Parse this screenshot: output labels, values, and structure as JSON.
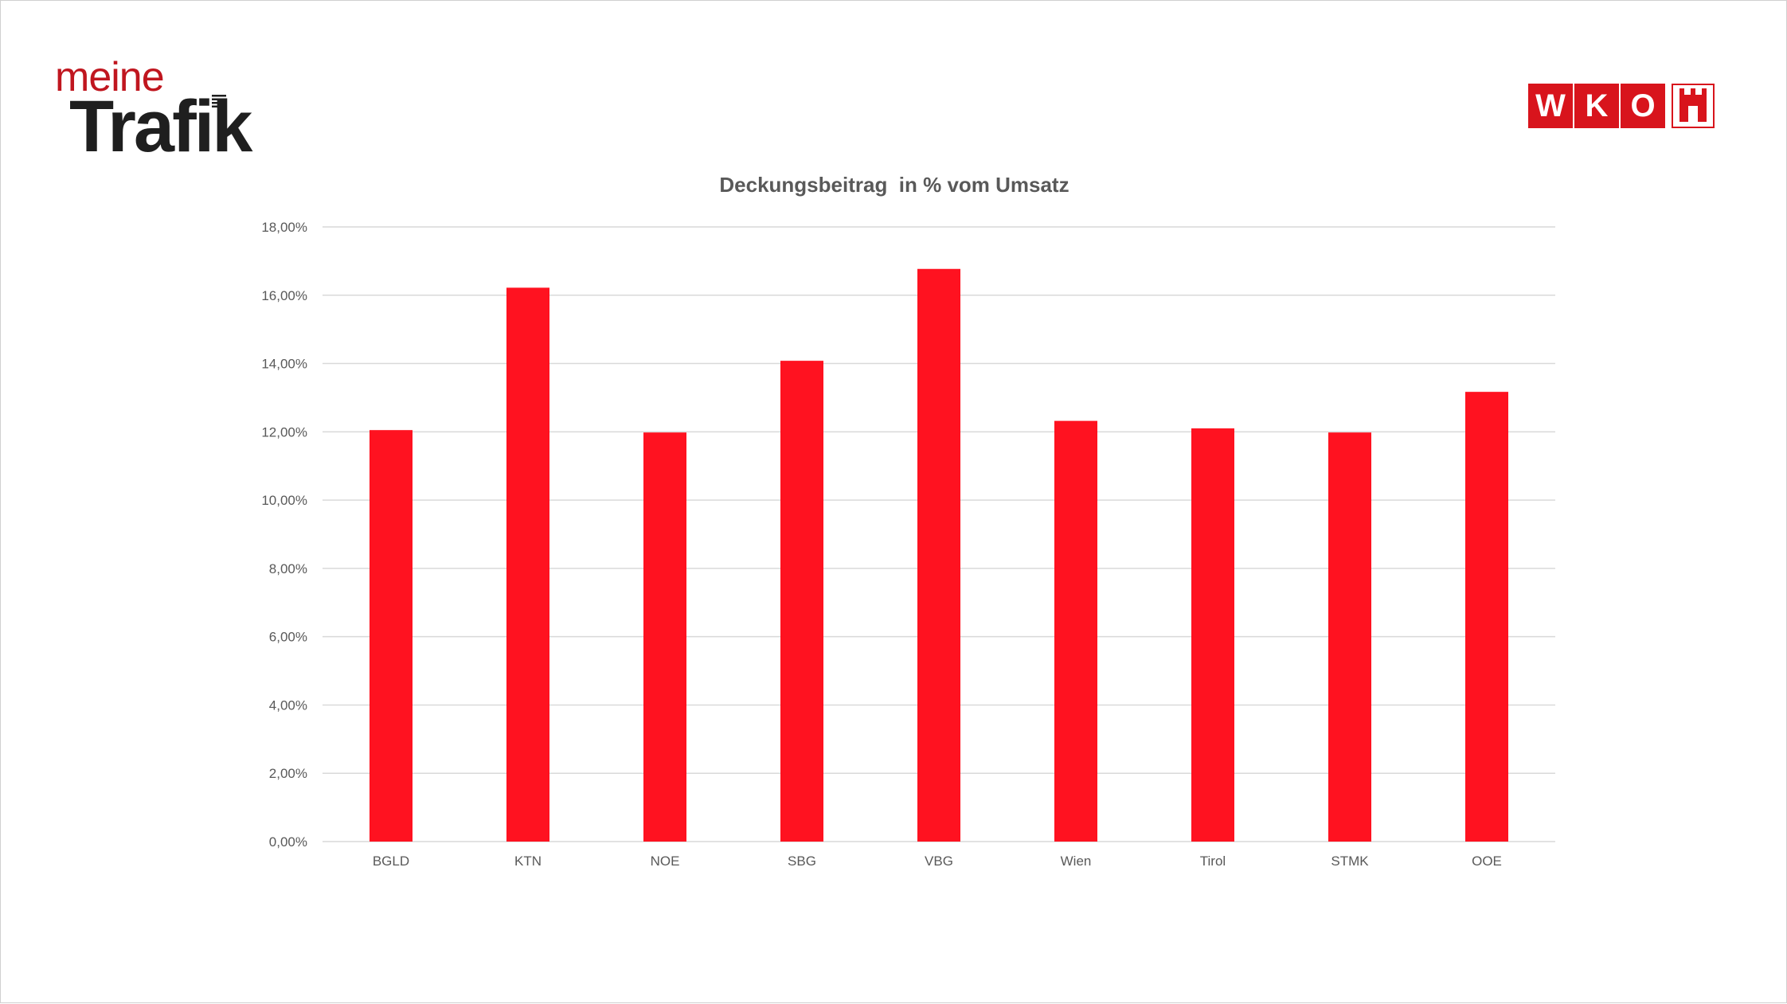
{
  "brand": {
    "left_logo_top": "meine",
    "left_logo_bottom": "Trafik",
    "right_logo_letters": [
      "W",
      "K",
      "O"
    ],
    "accent_color": "#ff1220",
    "logo_red": "#d8141c"
  },
  "chart_data": {
    "type": "bar",
    "title": "Deckungsbeitrag  in % vom Umsatz",
    "xlabel": "",
    "ylabel": "",
    "categories": [
      "BGLD",
      "KTN",
      "NOE",
      "SBG",
      "VBG",
      "Wien",
      "Tirol",
      "STMK",
      "OOE"
    ],
    "values": [
      12.05,
      16.22,
      11.98,
      14.08,
      16.77,
      12.32,
      12.1,
      11.98,
      13.17
    ],
    "ylim": [
      0,
      18
    ],
    "yticks": [
      0,
      2,
      4,
      6,
      8,
      10,
      12,
      14,
      16,
      18
    ],
    "ytick_labels": [
      "0,00%",
      "2,00%",
      "4,00%",
      "6,00%",
      "8,00%",
      "10,00%",
      "12,00%",
      "14,00%",
      "16,00%",
      "18,00%"
    ],
    "grid": true,
    "legend": "none",
    "bar_color": "#ff1220"
  }
}
